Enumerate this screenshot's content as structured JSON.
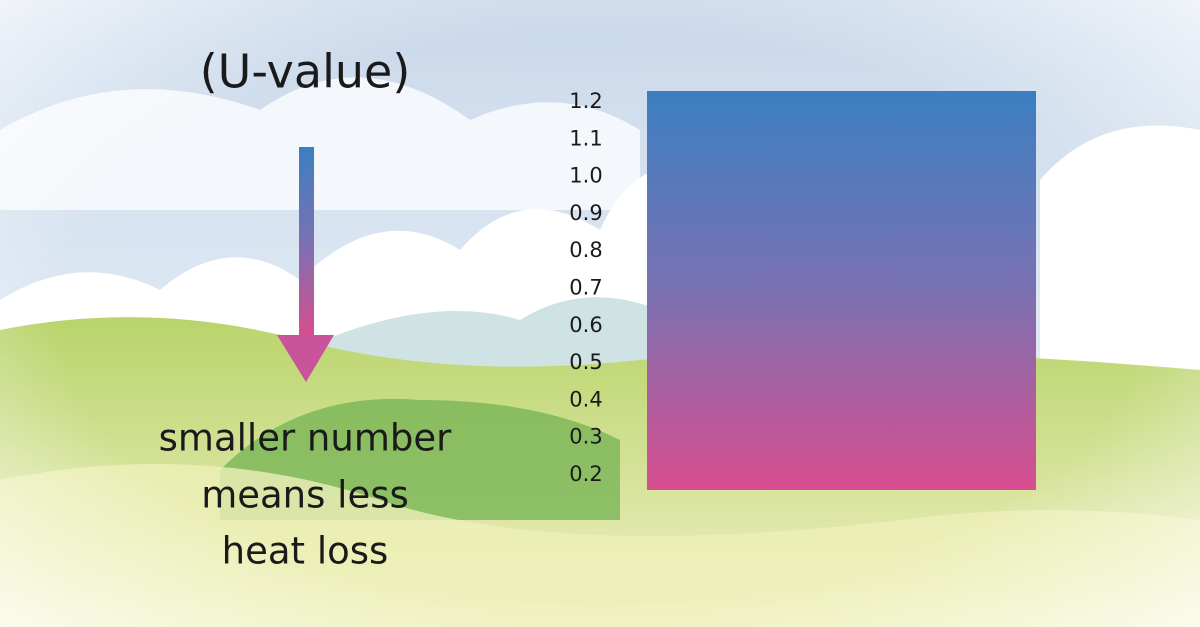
{
  "heading": "(U-value)",
  "caption": [
    "smaller number",
    "means less",
    "heat loss"
  ],
  "scale": {
    "labels": [
      "1.2",
      "1.1",
      "1.0",
      "0.9",
      "0.8",
      "0.7",
      "0.6",
      "0.5",
      "0.4",
      "0.3",
      "0.2"
    ]
  }
}
